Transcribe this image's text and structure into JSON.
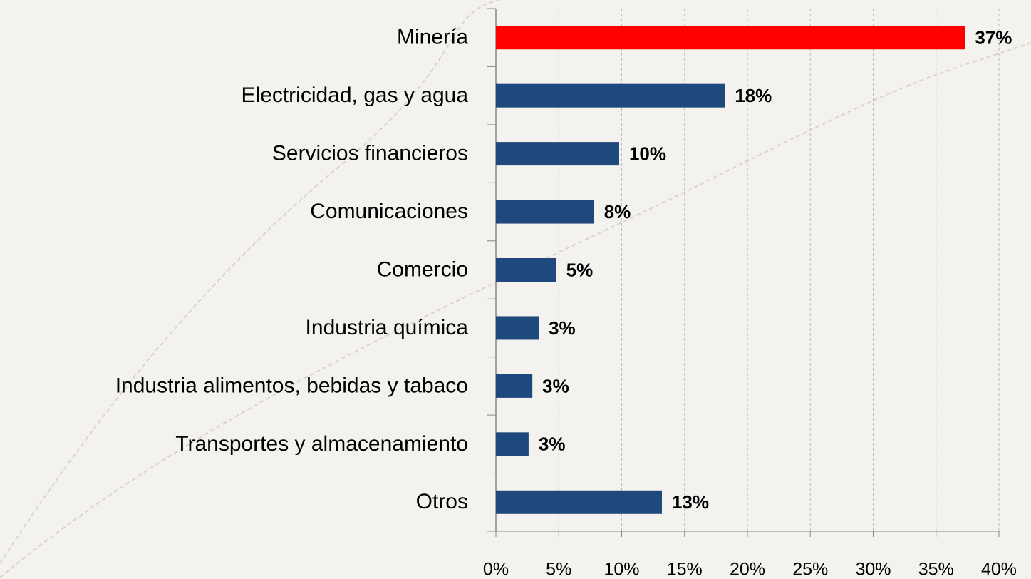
{
  "chart_data": {
    "type": "barh",
    "categories": [
      "Minería",
      "Electricidad, gas y agua",
      "Servicios financieros",
      "Comunicaciones",
      "Comercio",
      "Industria química",
      "Industria alimentos, bebidas y tabaco",
      "Transportes y almacenamiento",
      "Otros"
    ],
    "values": [
      37.3,
      18.2,
      9.8,
      7.8,
      4.8,
      3.4,
      2.9,
      2.6,
      13.2
    ],
    "value_labels": [
      "37%",
      "18%",
      "10%",
      "8%",
      "5%",
      "3%",
      "3%",
      "3%",
      "13%"
    ],
    "colors": [
      "#ff0000",
      "#1f497d",
      "#1f497d",
      "#1f497d",
      "#1f497d",
      "#1f497d",
      "#1f497d",
      "#1f497d",
      "#1f497d"
    ],
    "xlim": [
      0,
      40
    ],
    "xticks": [
      {
        "value": 0,
        "label": "0%"
      },
      {
        "value": 5,
        "label": "5%"
      },
      {
        "value": 10,
        "label": "10%"
      },
      {
        "value": 15,
        "label": "15%"
      },
      {
        "value": 20,
        "label": "20%"
      },
      {
        "value": 25,
        "label": "25%"
      },
      {
        "value": 30,
        "label": "30%"
      },
      {
        "value": 35,
        "label": "35%"
      },
      {
        "value": 40,
        "label": "40%"
      }
    ],
    "grid": true
  }
}
